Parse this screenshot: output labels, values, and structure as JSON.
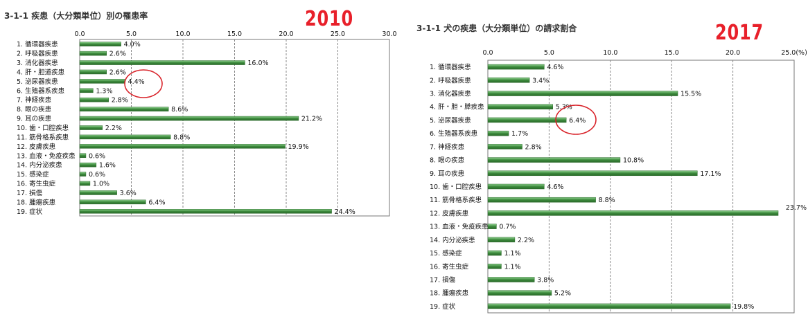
{
  "chart_data": [
    {
      "type": "bar",
      "title": "3-1-1 疾患（大分類単位）別の罹患率",
      "year_label": "2010",
      "xlim": [
        0,
        30
      ],
      "ticks": [
        "0.0",
        "5.0",
        "10.0",
        "15.0",
        "20.0",
        "25.0",
        "30.0"
      ],
      "categories": [
        "1. 循環器疾患",
        "2. 呼吸器疾患",
        "3. 消化器疾患",
        "4. 肝・胆道疾患",
        "5. 泌尿器疾患",
        "6. 生殖器系疾患",
        "7. 神経疾患",
        "8. 眼の疾患",
        "9. 耳の疾患",
        "10. 歯・口腔疾患",
        "11. 筋骨格系疾患",
        "12. 皮膚疾患",
        "13. 血液・免疫疾患",
        "14. 内分泌疾患",
        "15. 感染症",
        "16. 寄生虫症",
        "17. 損傷",
        "18. 腫瘍疾患",
        "19. 症状"
      ],
      "values": [
        4.0,
        2.6,
        16.0,
        2.6,
        4.4,
        1.3,
        2.8,
        8.6,
        21.2,
        2.2,
        8.8,
        19.9,
        0.6,
        1.6,
        0.6,
        1.0,
        3.6,
        6.4,
        24.4
      ],
      "labels": [
        "4.0%",
        "2.6%",
        "16.0%",
        "2.6%",
        "4.4%",
        "1.3%",
        "2.8%",
        "8.6%",
        "21.2%",
        "2.2%",
        "8.8%",
        "19.9%",
        "0.6%",
        "1.6%",
        "0.6%",
        "1.0%",
        "3.6%",
        "6.4%",
        "24.4%"
      ],
      "highlight_index": 4,
      "bar_color": "#3c8a3c",
      "grid": true
    },
    {
      "type": "bar",
      "title": "3-1-1 犬の疾患（大分類単位）の請求割合",
      "year_label": "2017",
      "xlim": [
        0,
        25
      ],
      "ticks": [
        "0.0",
        "5.0",
        "10.0",
        "15.0",
        "20.0",
        "25.0(%)"
      ],
      "categories": [
        "1. 循環器疾患",
        "2. 呼吸器疾患",
        "3. 消化器疾患",
        "4. 肝・胆・膵疾患",
        "5. 泌尿器疾患",
        "6. 生殖器系疾患",
        "7. 神経疾患",
        "8. 眼の疾患",
        "9. 耳の疾患",
        "10. 歯・口腔疾患",
        "11. 筋骨格系疾患",
        "12. 皮膚疾患",
        "13. 血液・免疫疾患",
        "14. 内分泌疾患",
        "15. 感染症",
        "16. 寄生虫症",
        "17. 損傷",
        "18. 腫瘍疾患",
        "19. 症状"
      ],
      "values": [
        4.6,
        3.4,
        15.5,
        5.3,
        6.4,
        1.7,
        2.8,
        10.8,
        17.1,
        4.6,
        8.8,
        23.7,
        0.7,
        2.2,
        1.1,
        1.1,
        3.8,
        5.2,
        19.8
      ],
      "labels": [
        "4.6%",
        "3.4%",
        "15.5%",
        "5.3%",
        "6.4%",
        "1.7%",
        "2.8%",
        "10.8%",
        "17.1%",
        "4.6%",
        "8.8%",
        "23.7%",
        "0.7%",
        "2.2%",
        "1.1%",
        "1.1%",
        "3.8%",
        "5.2%",
        "19.8%"
      ],
      "highlight_index": 4,
      "bar_color": "#3c8a3c",
      "grid": true
    }
  ]
}
